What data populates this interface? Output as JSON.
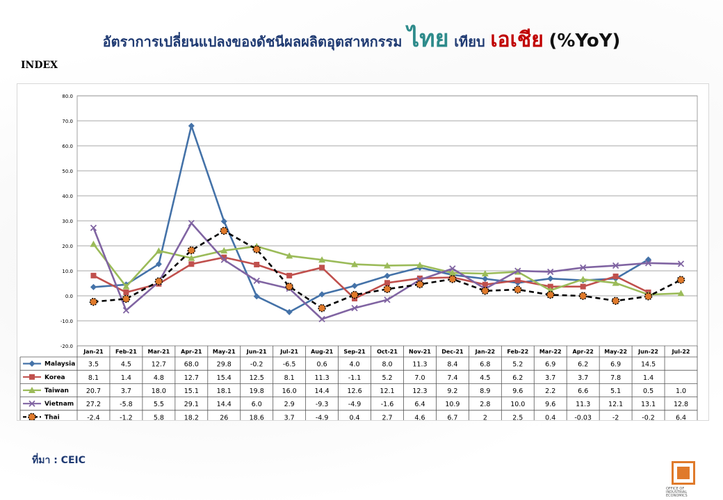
{
  "header": {
    "title_main": "อัตราการเปลี่ยนแปลงของดัชนีผลผลิตอุตสาหกรรม",
    "title_thai": "ไทย",
    "title_vs": "เทียบ",
    "title_asia": "เอเชีย",
    "title_unit": "(%YoY)"
  },
  "axis_label": "INDEX",
  "source": "ที่มา : CEIC",
  "logo": {
    "caption": "OFFICE OF INDUSTRIAL ECONOMICS"
  },
  "chart_data": {
    "type": "line",
    "title": "อัตราการเปลี่ยนแปลงของดัชนีผลผลิตอุตสาหกรรม ไทย เทียบ เอเชีย (%YoY)",
    "ylabel": "INDEX",
    "xlabel": "",
    "ylim": [
      -20,
      80
    ],
    "yticks": [
      "80.0",
      "70.0",
      "60.0",
      "50.0",
      "40.0",
      "30.0",
      "20.0",
      "10.0",
      "0.0",
      "-10.0",
      "-20.0"
    ],
    "grid": true,
    "legend": "data-table-left",
    "categories": [
      "Jan-21",
      "Feb-21",
      "Mar-21",
      "Apr-21",
      "May-21",
      "Jun-21",
      "Jul-21",
      "Aug-21",
      "Sep-21",
      "Oct-21",
      "Nov-21",
      "Dec-21",
      "Jan-22",
      "Feb-22",
      "Mar-22",
      "Apr-22",
      "May-22",
      "Jun-22",
      "Jul-22"
    ],
    "series": [
      {
        "name": "Malaysia",
        "color": "#4472a8",
        "marker": "diamond",
        "dash": false,
        "values": [
          3.5,
          4.5,
          12.7,
          68.0,
          29.8,
          -0.2,
          -6.5,
          0.6,
          4.0,
          8.0,
          11.3,
          8.4,
          6.8,
          5.2,
          6.9,
          6.2,
          6.9,
          14.5,
          null
        ],
        "labels": [
          "3.5",
          "4.5",
          "12.7",
          "68.0",
          "29.8",
          "-0.2",
          "-6.5",
          "0.6",
          "4.0",
          "8.0",
          "11.3",
          "8.4",
          "6.8",
          "5.2",
          "6.9",
          "6.2",
          "6.9",
          "14.5",
          ""
        ]
      },
      {
        "name": "Korea",
        "color": "#c0504d",
        "marker": "square",
        "dash": false,
        "values": [
          8.1,
          1.4,
          4.8,
          12.7,
          15.4,
          12.5,
          8.1,
          11.3,
          -1.1,
          5.2,
          7.0,
          7.4,
          4.5,
          6.2,
          3.7,
          3.7,
          7.8,
          1.4,
          null
        ],
        "labels": [
          "8.1",
          "1.4",
          "4.8",
          "12.7",
          "15.4",
          "12.5",
          "8.1",
          "11.3",
          "-1.1",
          "5.2",
          "7.0",
          "7.4",
          "4.5",
          "6.2",
          "3.7",
          "3.7",
          "7.8",
          "1.4",
          ""
        ]
      },
      {
        "name": "Taiwan",
        "color": "#9bbb59",
        "marker": "triangle",
        "dash": false,
        "values": [
          20.7,
          3.7,
          18.0,
          15.1,
          18.1,
          19.8,
          16.0,
          14.4,
          12.6,
          12.1,
          12.3,
          9.2,
          8.9,
          9.6,
          2.2,
          6.6,
          5.1,
          0.5,
          1.0
        ],
        "labels": [
          "20.7",
          "3.7",
          "18.0",
          "15.1",
          "18.1",
          "19.8",
          "16.0",
          "14.4",
          "12.6",
          "12.1",
          "12.3",
          "9.2",
          "8.9",
          "9.6",
          "2.2",
          "6.6",
          "5.1",
          "0.5",
          "1.0"
        ]
      },
      {
        "name": "Vietnam",
        "color": "#8064a2",
        "marker": "x",
        "dash": false,
        "values": [
          27.2,
          -5.8,
          5.5,
          29.1,
          14.4,
          6.0,
          2.9,
          -9.3,
          -4.9,
          -1.6,
          6.4,
          10.9,
          2.8,
          10.0,
          9.6,
          11.3,
          12.1,
          13.1,
          12.8
        ],
        "labels": [
          "27.2",
          "-5.8",
          "5.5",
          "29.1",
          "14.4",
          "6.0",
          "2.9",
          "-9.3",
          "-4.9",
          "-1.6",
          "6.4",
          "10.9",
          "2.8",
          "10.0",
          "9.6",
          "11.3",
          "12.1",
          "13.1",
          "12.8"
        ]
      },
      {
        "name": "Thai",
        "color": "#000000",
        "marker": "circle",
        "markerFill": "#e07a2b",
        "dash": true,
        "values": [
          -2.4,
          -1.2,
          5.8,
          18.2,
          26,
          18.6,
          3.7,
          -4.9,
          0.4,
          2.7,
          4.6,
          6.7,
          2,
          2.5,
          0.4,
          -0.03,
          -2,
          -0.2,
          6.4
        ],
        "labels": [
          "-2.4",
          "-1.2",
          "5.8",
          "18.2",
          "26",
          "18.6",
          "3.7",
          "-4.9",
          "0.4",
          "2.7",
          "4.6",
          "6.7",
          "2",
          "2.5",
          "0.4",
          "-0.03",
          "-2",
          "-0.2",
          "6.4"
        ]
      }
    ]
  }
}
